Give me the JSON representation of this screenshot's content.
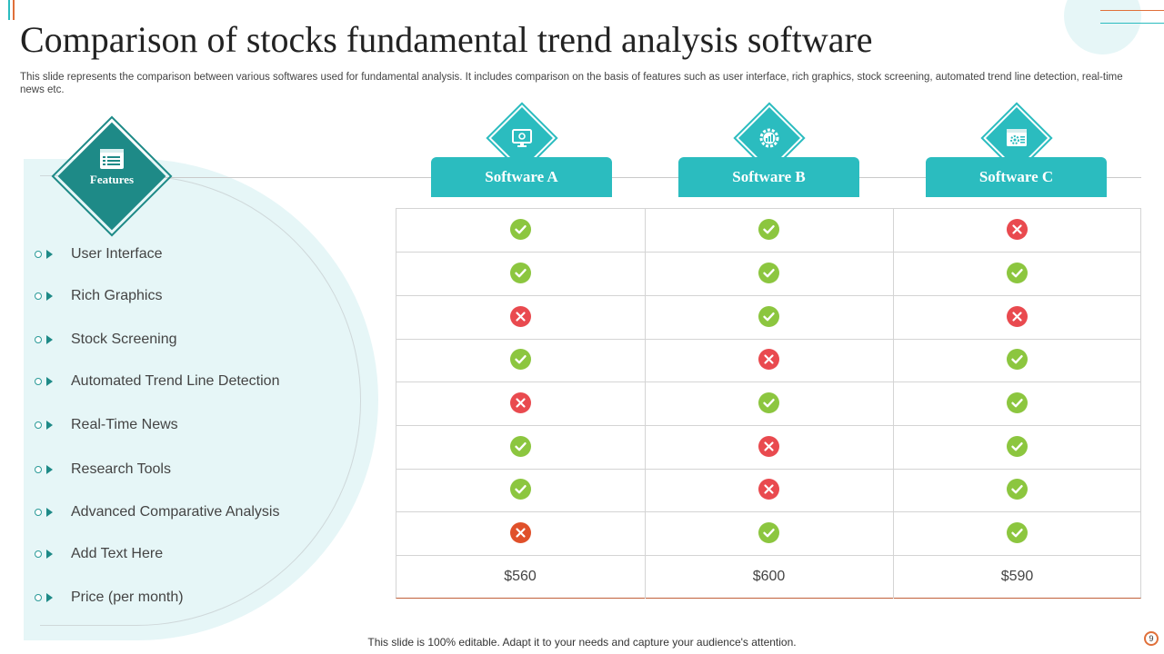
{
  "slide": {
    "title": "Comparison of stocks fundamental trend analysis software",
    "subtitle": "This slide represents the comparison between various softwares used for fundamental analysis. It includes comparison on the basis of features such as user interface, rich graphics, stock screening, automated trend line detection, real-time news etc.",
    "footer": "This slide is 100% editable. Adapt it to your needs and capture your audience's attention.",
    "page_number": "9"
  },
  "features_header": {
    "label": "Features",
    "icon": "document-list-icon"
  },
  "features": [
    "User Interface",
    "Rich Graphics",
    "Stock Screening",
    "Automated Trend Line Detection",
    "Real-Time News",
    "Research Tools",
    "Advanced Comparative Analysis",
    "Add Text Here",
    "Price (per month)"
  ],
  "software": [
    {
      "name": "Software A",
      "icon": "monitor-gear-icon",
      "price": "$560"
    },
    {
      "name": "Software B",
      "icon": "gear-chart-icon",
      "price": "$600"
    },
    {
      "name": "Software C",
      "icon": "browser-gear-icon",
      "price": "$590"
    }
  ],
  "matrix": [
    [
      true,
      true,
      false
    ],
    [
      true,
      true,
      true
    ],
    [
      false,
      true,
      false
    ],
    [
      true,
      false,
      true
    ],
    [
      false,
      true,
      true
    ],
    [
      true,
      false,
      true
    ],
    [
      true,
      false,
      true
    ],
    [
      false,
      true,
      true
    ]
  ],
  "colors": {
    "accent_teal": "#2bbcbf",
    "dark_teal": "#1e8a87",
    "check_green": "#8cc63f",
    "cross_red": "#e94a4f",
    "cross_orange": "#e0502a"
  }
}
